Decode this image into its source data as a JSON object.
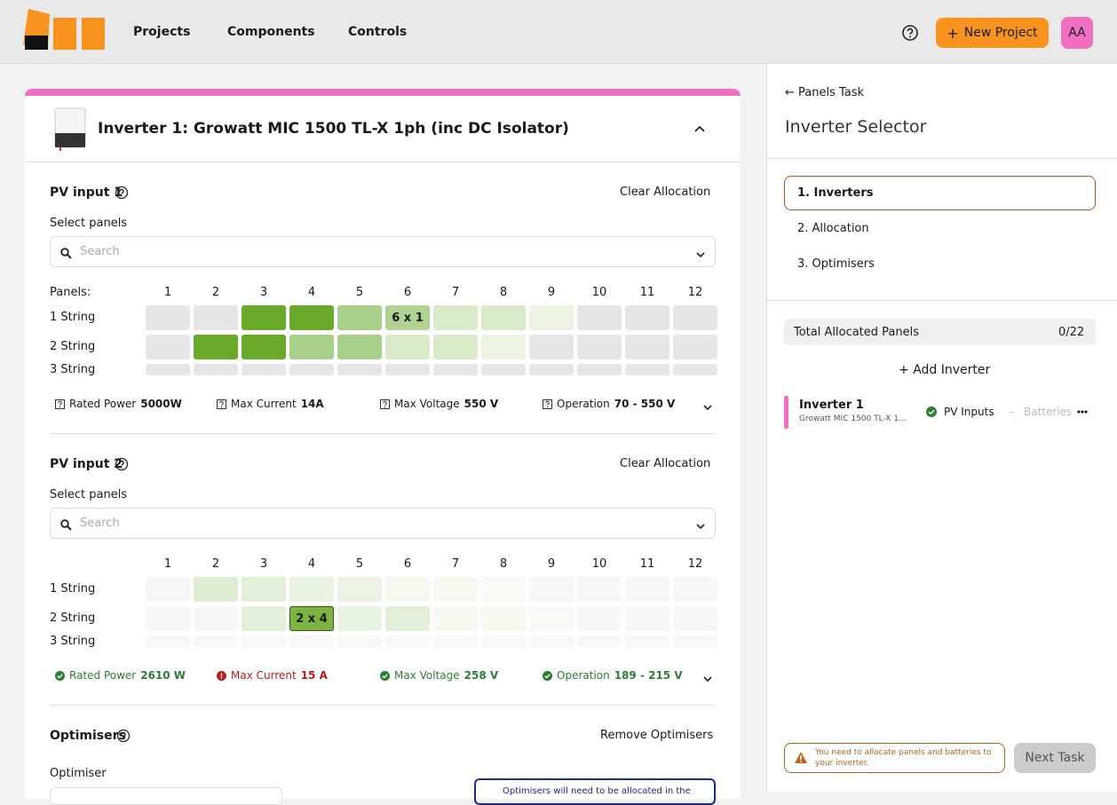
{
  "nav": {
    "items": [
      "Projects",
      "Components",
      "Controls"
    ],
    "new_project": "New Project",
    "avatar": "AA"
  },
  "inverter": {
    "title": "Inverter 1: Growatt MIC 1500 TL-X 1ph (inc DC Isolator)",
    "pv_inputs": [
      {
        "title": "PV input 1",
        "clear": "Clear Allocation",
        "select_label": "Select panels",
        "search_placeholder": "Search",
        "panels_label": "Panels:",
        "columns": [
          1,
          2,
          3,
          4,
          5,
          6,
          7,
          8,
          9,
          10,
          11,
          12
        ],
        "rows": [
          "1 String",
          "2 String",
          "3 String"
        ],
        "cell_labels": [
          {
            "row": 0,
            "col": 5,
            "label": "6 x 1"
          }
        ],
        "cell_colors": [
          [
            "#e6e6e6",
            "#e6e6e6",
            "#6aaa2a",
            "#6aaa2a",
            "#a8d08a",
            "#b0d394",
            "#d9ebc8",
            "#d9ebc8",
            "#eaf4e0",
            "#e6e6e6",
            "#e6e6e6",
            "#e6e6e6"
          ],
          [
            "#e6e6e6",
            "#6aaa2a",
            "#6aaa2a",
            "#a8d08a",
            "#a8d08a",
            "#d9ebc8",
            "#d9ebc8",
            "#eaf4e0",
            "#e6e6e6",
            "#e6e6e6",
            "#e6e6e6",
            "#e6e6e6"
          ],
          [
            "#e6e6e6",
            "#e6e6e6",
            "#e6e6e6",
            "#e6e6e6",
            "#e6e6e6",
            "#e6e6e6",
            "#e6e6e6",
            "#e6e6e6",
            "#e6e6e6",
            "#e6e6e6",
            "#e6e6e6",
            "#e6e6e6"
          ]
        ],
        "stats": [
          {
            "label": "Rated Power",
            "value": "5000W",
            "status": "info"
          },
          {
            "label": "Max Current",
            "value": "14A",
            "status": "info"
          },
          {
            "label": "Max Voltage",
            "value": "550 V",
            "status": "info"
          },
          {
            "label": "Operation",
            "value": "70 - 550 V",
            "status": "info"
          }
        ]
      },
      {
        "title": "PV input 2",
        "clear": "Clear Allocation",
        "select_label": "Select panels",
        "search_placeholder": "Search",
        "columns": [
          1,
          2,
          3,
          4,
          5,
          6,
          7,
          8,
          9,
          10,
          11,
          12
        ],
        "rows": [
          "1 String",
          "2 String",
          "3 String"
        ],
        "cell_labels": [
          {
            "row": 1,
            "col": 3,
            "label": "2 x 4"
          }
        ],
        "cell_colors": [
          [
            "#f6f6f6",
            "#dfeed3",
            "#e3efd8",
            "#e9f3e1",
            "#ebf4e4",
            "#f5f9f0",
            "#f5f9f0",
            "#f8faf5",
            "#f7f7f7",
            "#f7f7f7",
            "#f7f7f7",
            "#f7f7f7"
          ],
          [
            "#f7f7f7",
            "#f7f7f7",
            "#e3efd8",
            "#7cb342",
            "#e9f3e1",
            "#e3efd8",
            "#f5f9f0",
            "#f5f9f0",
            "#f8faf5",
            "#f7f7f7",
            "#f7f7f7",
            "#f7f7f7"
          ],
          [
            "#f7f7f7",
            "#f7f7f7",
            "#f7f7f7",
            "#f7f7f7",
            "#f7f7f7",
            "#f7f7f7",
            "#f7f7f7",
            "#f7f7f7",
            "#f7f7f7",
            "#f7f7f7",
            "#f7f7f7",
            "#f7f7f7"
          ]
        ],
        "stats": [
          {
            "label": "Rated Power",
            "value": "2610 W",
            "status": "ok"
          },
          {
            "label": "Max Current",
            "value": "15 A",
            "status": "error"
          },
          {
            "label": "Max Voltage",
            "value": "258 V",
            "status": "ok"
          },
          {
            "label": "Operation",
            "value": "189 - 215 V",
            "status": "ok"
          }
        ]
      }
    ],
    "optimisers": {
      "title": "Optimisers",
      "action": "Remove Optimisers",
      "label": "Optimiser",
      "note": "Optimisers will need to be allocated in the"
    }
  },
  "sidebar": {
    "back": "Panels Task",
    "heading": "Inverter Selector",
    "steps": [
      "1. Inverters",
      "2. Allocation",
      "3. Optimisers"
    ],
    "total_label": "Total Allocated Panels",
    "total_value": "0/22",
    "add": "Add Inverter",
    "item": {
      "name": "Inverter 1",
      "model": "Growatt MIC 1500 TL-X 1...",
      "status": "PV Inputs",
      "batteries": "Batteries"
    },
    "warning": "You need to allocate panels and batteries to your inverter.",
    "next": "Next Task"
  }
}
